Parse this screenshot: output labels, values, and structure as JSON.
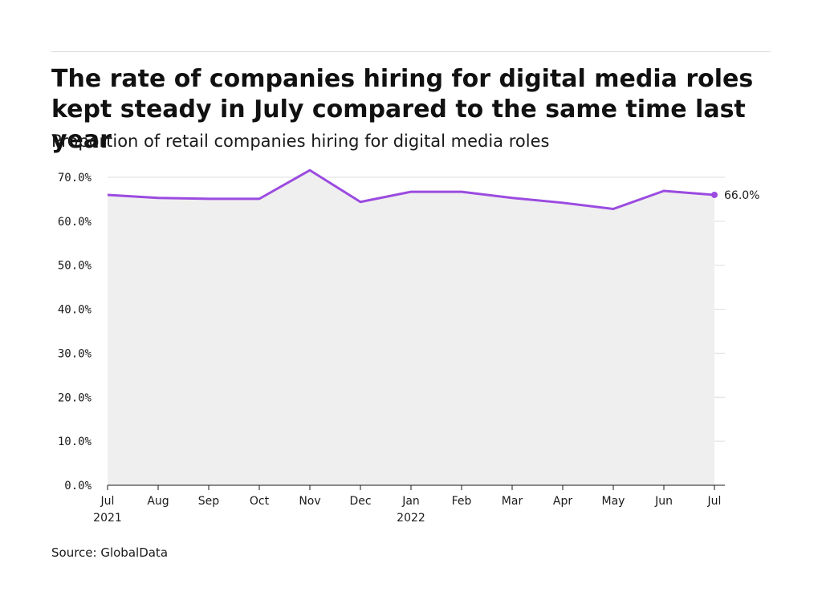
{
  "header": {
    "title": "The rate of companies hiring for digital media roles kept steady in July compared to the same time last year",
    "subtitle": "Proportion of retail companies hiring for digital media roles"
  },
  "footer": {
    "source": "Source: GlobalData"
  },
  "colors": {
    "line": "#9b4be0",
    "area": "#efefef",
    "grid": "#dddddd",
    "axis": "#1a1a1a"
  },
  "chart_data": {
    "type": "area",
    "categories": [
      "Jul\n2021",
      "Aug",
      "Sep",
      "Oct",
      "Nov",
      "Dec",
      "Jan\n2022",
      "Feb",
      "Mar",
      "Apr",
      "May",
      "Jun",
      "Jul"
    ],
    "series": [
      {
        "values": [
          66.0,
          65.3,
          65.1,
          65.1,
          71.6,
          64.4,
          66.7,
          66.7,
          65.3,
          64.2,
          62.8,
          66.9,
          66.0
        ]
      }
    ],
    "ylim": [
      0,
      70
    ],
    "yticks": [
      0,
      10,
      20,
      30,
      40,
      50,
      60,
      70
    ],
    "ytick_labels": [
      "0.0%",
      "10.0%",
      "20.0%",
      "30.0%",
      "40.0%",
      "50.0%",
      "60.0%",
      "70.0%"
    ],
    "end_label": "66.0%",
    "grid": true,
    "legend": "none"
  }
}
